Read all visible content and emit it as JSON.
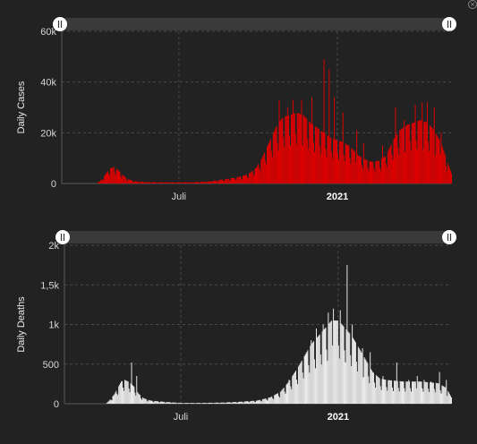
{
  "chart_data": [
    {
      "type": "bar",
      "ylabel": "Daily Cases",
      "color": "#e00000",
      "ylim": [
        0,
        60000
      ],
      "y_ticks": [
        0,
        20000,
        40000,
        60000
      ],
      "y_tick_labels": [
        "0",
        "20k",
        "40k",
        "60k"
      ],
      "x_tick_labels": [
        {
          "label": "Juli",
          "day": 136,
          "bold": false
        },
        {
          "label": "2021",
          "day": 320,
          "bold": true
        }
      ],
      "x_start_day": 0,
      "x_end_day": 452,
      "grid": true,
      "anchors": [
        [
          0,
          0
        ],
        [
          40,
          0
        ],
        [
          45,
          1200
        ],
        [
          50,
          3500
        ],
        [
          55,
          5800
        ],
        [
          60,
          6500
        ],
        [
          65,
          5200
        ],
        [
          70,
          3500
        ],
        [
          75,
          2000
        ],
        [
          82,
          1000
        ],
        [
          95,
          600
        ],
        [
          110,
          500
        ],
        [
          130,
          450
        ],
        [
          150,
          500
        ],
        [
          170,
          800
        ],
        [
          185,
          1500
        ],
        [
          200,
          2200
        ],
        [
          215,
          3500
        ],
        [
          225,
          6000
        ],
        [
          232,
          10000
        ],
        [
          240,
          16000
        ],
        [
          248,
          22000
        ],
        [
          256,
          26000
        ],
        [
          264,
          27000
        ],
        [
          272,
          28000
        ],
        [
          280,
          27000
        ],
        [
          288,
          24000
        ],
        [
          296,
          22000
        ],
        [
          304,
          20000
        ],
        [
          312,
          18000
        ],
        [
          320,
          17000
        ],
        [
          328,
          16000
        ],
        [
          336,
          14000
        ],
        [
          344,
          11000
        ],
        [
          352,
          9500
        ],
        [
          360,
          8500
        ],
        [
          368,
          9000
        ],
        [
          376,
          11000
        ],
        [
          384,
          17000
        ],
        [
          392,
          21000
        ],
        [
          400,
          23000
        ],
        [
          408,
          24000
        ],
        [
          416,
          25000
        ],
        [
          424,
          24000
        ],
        [
          432,
          21000
        ],
        [
          440,
          16000
        ],
        [
          446,
          10000
        ],
        [
          452,
          4000
        ]
      ],
      "spikes": [
        [
          252,
          33000
        ],
        [
          262,
          30000
        ],
        [
          268,
          33000
        ],
        [
          278,
          33000
        ],
        [
          290,
          34000
        ],
        [
          304,
          49000
        ],
        [
          310,
          45000
        ],
        [
          316,
          34000
        ],
        [
          326,
          28000
        ],
        [
          342,
          21000
        ],
        [
          350,
          16000
        ],
        [
          372,
          15000
        ],
        [
          387,
          30000
        ],
        [
          397,
          25000
        ],
        [
          410,
          31000
        ],
        [
          418,
          32000
        ],
        [
          424,
          32000
        ],
        [
          432,
          30000
        ],
        [
          440,
          20000
        ]
      ],
      "brush": {
        "left_fraction": 0,
        "right_fraction": 1
      }
    },
    {
      "type": "bar",
      "ylabel": "Daily Deaths",
      "color": "#eeeeee",
      "ylim": [
        0,
        2000
      ],
      "y_ticks": [
        0,
        500,
        1000,
        1500,
        2000
      ],
      "y_tick_labels": [
        "0",
        "500",
        "1k",
        "1,5k",
        "2k"
      ],
      "x_tick_labels": [
        {
          "label": "Juli",
          "day": 136,
          "bold": false
        },
        {
          "label": "2021",
          "day": 320,
          "bold": true
        }
      ],
      "x_start_day": 0,
      "x_end_day": 452,
      "grid": true,
      "anchors": [
        [
          0,
          0
        ],
        [
          48,
          0
        ],
        [
          52,
          40
        ],
        [
          58,
          120
        ],
        [
          62,
          200
        ],
        [
          66,
          280
        ],
        [
          70,
          300
        ],
        [
          74,
          280
        ],
        [
          78,
          250
        ],
        [
          82,
          200
        ],
        [
          86,
          130
        ],
        [
          92,
          70
        ],
        [
          100,
          40
        ],
        [
          115,
          25
        ],
        [
          135,
          10
        ],
        [
          160,
          10
        ],
        [
          185,
          15
        ],
        [
          205,
          25
        ],
        [
          225,
          40
        ],
        [
          240,
          80
        ],
        [
          252,
          150
        ],
        [
          262,
          280
        ],
        [
          272,
          450
        ],
        [
          280,
          600
        ],
        [
          288,
          750
        ],
        [
          296,
          850
        ],
        [
          304,
          950
        ],
        [
          312,
          1050
        ],
        [
          320,
          1050
        ],
        [
          328,
          950
        ],
        [
          336,
          850
        ],
        [
          344,
          700
        ],
        [
          352,
          550
        ],
        [
          360,
          400
        ],
        [
          368,
          320
        ],
        [
          376,
          300
        ],
        [
          386,
          290
        ],
        [
          396,
          280
        ],
        [
          406,
          280
        ],
        [
          416,
          280
        ],
        [
          426,
          270
        ],
        [
          436,
          260
        ],
        [
          446,
          200
        ],
        [
          452,
          80
        ]
      ],
      "spikes": [
        [
          78,
          520
        ],
        [
          84,
          350
        ],
        [
          262,
          300
        ],
        [
          288,
          800
        ],
        [
          294,
          950
        ],
        [
          302,
          1000
        ],
        [
          308,
          1150
        ],
        [
          314,
          1200
        ],
        [
          322,
          1180
        ],
        [
          330,
          1750
        ],
        [
          336,
          1000
        ],
        [
          348,
          700
        ],
        [
          357,
          650
        ],
        [
          372,
          350
        ],
        [
          388,
          520
        ],
        [
          402,
          300
        ],
        [
          412,
          350
        ],
        [
          420,
          300
        ],
        [
          428,
          280
        ],
        [
          438,
          400
        ],
        [
          446,
          300
        ]
      ],
      "brush": {
        "left_fraction": 0,
        "right_fraction": 1
      }
    }
  ]
}
